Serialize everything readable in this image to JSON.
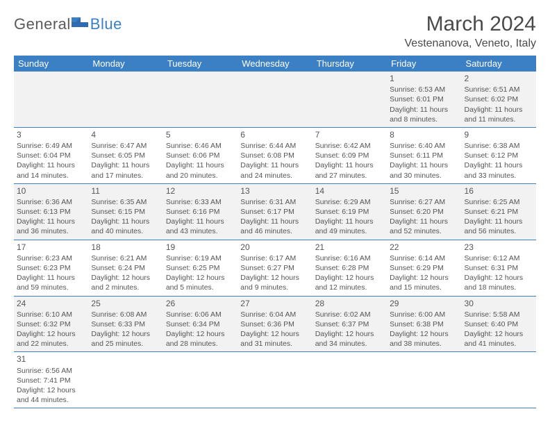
{
  "brand": {
    "part1": "General",
    "part2": "Blue"
  },
  "title": "March 2024",
  "location": "Vestenanova, Veneto, Italy",
  "weekdays": [
    "Sunday",
    "Monday",
    "Tuesday",
    "Wednesday",
    "Thursday",
    "Friday",
    "Saturday"
  ],
  "colors": {
    "header_bg": "#3b7fc4",
    "header_text": "#ffffff",
    "row_alt_bg": "#f2f2f2",
    "border": "#3b7fc4",
    "text": "#555555",
    "logo_blue": "#3b7fc4"
  },
  "weeks": [
    [
      {
        "day": "",
        "sunrise": "",
        "sunset": "",
        "daylight1": "",
        "daylight2": ""
      },
      {
        "day": "",
        "sunrise": "",
        "sunset": "",
        "daylight1": "",
        "daylight2": ""
      },
      {
        "day": "",
        "sunrise": "",
        "sunset": "",
        "daylight1": "",
        "daylight2": ""
      },
      {
        "day": "",
        "sunrise": "",
        "sunset": "",
        "daylight1": "",
        "daylight2": ""
      },
      {
        "day": "",
        "sunrise": "",
        "sunset": "",
        "daylight1": "",
        "daylight2": ""
      },
      {
        "day": "1",
        "sunrise": "Sunrise: 6:53 AM",
        "sunset": "Sunset: 6:01 PM",
        "daylight1": "Daylight: 11 hours",
        "daylight2": "and 8 minutes."
      },
      {
        "day": "2",
        "sunrise": "Sunrise: 6:51 AM",
        "sunset": "Sunset: 6:02 PM",
        "daylight1": "Daylight: 11 hours",
        "daylight2": "and 11 minutes."
      }
    ],
    [
      {
        "day": "3",
        "sunrise": "Sunrise: 6:49 AM",
        "sunset": "Sunset: 6:04 PM",
        "daylight1": "Daylight: 11 hours",
        "daylight2": "and 14 minutes."
      },
      {
        "day": "4",
        "sunrise": "Sunrise: 6:47 AM",
        "sunset": "Sunset: 6:05 PM",
        "daylight1": "Daylight: 11 hours",
        "daylight2": "and 17 minutes."
      },
      {
        "day": "5",
        "sunrise": "Sunrise: 6:46 AM",
        "sunset": "Sunset: 6:06 PM",
        "daylight1": "Daylight: 11 hours",
        "daylight2": "and 20 minutes."
      },
      {
        "day": "6",
        "sunrise": "Sunrise: 6:44 AM",
        "sunset": "Sunset: 6:08 PM",
        "daylight1": "Daylight: 11 hours",
        "daylight2": "and 24 minutes."
      },
      {
        "day": "7",
        "sunrise": "Sunrise: 6:42 AM",
        "sunset": "Sunset: 6:09 PM",
        "daylight1": "Daylight: 11 hours",
        "daylight2": "and 27 minutes."
      },
      {
        "day": "8",
        "sunrise": "Sunrise: 6:40 AM",
        "sunset": "Sunset: 6:11 PM",
        "daylight1": "Daylight: 11 hours",
        "daylight2": "and 30 minutes."
      },
      {
        "day": "9",
        "sunrise": "Sunrise: 6:38 AM",
        "sunset": "Sunset: 6:12 PM",
        "daylight1": "Daylight: 11 hours",
        "daylight2": "and 33 minutes."
      }
    ],
    [
      {
        "day": "10",
        "sunrise": "Sunrise: 6:36 AM",
        "sunset": "Sunset: 6:13 PM",
        "daylight1": "Daylight: 11 hours",
        "daylight2": "and 36 minutes."
      },
      {
        "day": "11",
        "sunrise": "Sunrise: 6:35 AM",
        "sunset": "Sunset: 6:15 PM",
        "daylight1": "Daylight: 11 hours",
        "daylight2": "and 40 minutes."
      },
      {
        "day": "12",
        "sunrise": "Sunrise: 6:33 AM",
        "sunset": "Sunset: 6:16 PM",
        "daylight1": "Daylight: 11 hours",
        "daylight2": "and 43 minutes."
      },
      {
        "day": "13",
        "sunrise": "Sunrise: 6:31 AM",
        "sunset": "Sunset: 6:17 PM",
        "daylight1": "Daylight: 11 hours",
        "daylight2": "and 46 minutes."
      },
      {
        "day": "14",
        "sunrise": "Sunrise: 6:29 AM",
        "sunset": "Sunset: 6:19 PM",
        "daylight1": "Daylight: 11 hours",
        "daylight2": "and 49 minutes."
      },
      {
        "day": "15",
        "sunrise": "Sunrise: 6:27 AM",
        "sunset": "Sunset: 6:20 PM",
        "daylight1": "Daylight: 11 hours",
        "daylight2": "and 52 minutes."
      },
      {
        "day": "16",
        "sunrise": "Sunrise: 6:25 AM",
        "sunset": "Sunset: 6:21 PM",
        "daylight1": "Daylight: 11 hours",
        "daylight2": "and 56 minutes."
      }
    ],
    [
      {
        "day": "17",
        "sunrise": "Sunrise: 6:23 AM",
        "sunset": "Sunset: 6:23 PM",
        "daylight1": "Daylight: 11 hours",
        "daylight2": "and 59 minutes."
      },
      {
        "day": "18",
        "sunrise": "Sunrise: 6:21 AM",
        "sunset": "Sunset: 6:24 PM",
        "daylight1": "Daylight: 12 hours",
        "daylight2": "and 2 minutes."
      },
      {
        "day": "19",
        "sunrise": "Sunrise: 6:19 AM",
        "sunset": "Sunset: 6:25 PM",
        "daylight1": "Daylight: 12 hours",
        "daylight2": "and 5 minutes."
      },
      {
        "day": "20",
        "sunrise": "Sunrise: 6:17 AM",
        "sunset": "Sunset: 6:27 PM",
        "daylight1": "Daylight: 12 hours",
        "daylight2": "and 9 minutes."
      },
      {
        "day": "21",
        "sunrise": "Sunrise: 6:16 AM",
        "sunset": "Sunset: 6:28 PM",
        "daylight1": "Daylight: 12 hours",
        "daylight2": "and 12 minutes."
      },
      {
        "day": "22",
        "sunrise": "Sunrise: 6:14 AM",
        "sunset": "Sunset: 6:29 PM",
        "daylight1": "Daylight: 12 hours",
        "daylight2": "and 15 minutes."
      },
      {
        "day": "23",
        "sunrise": "Sunrise: 6:12 AM",
        "sunset": "Sunset: 6:31 PM",
        "daylight1": "Daylight: 12 hours",
        "daylight2": "and 18 minutes."
      }
    ],
    [
      {
        "day": "24",
        "sunrise": "Sunrise: 6:10 AM",
        "sunset": "Sunset: 6:32 PM",
        "daylight1": "Daylight: 12 hours",
        "daylight2": "and 22 minutes."
      },
      {
        "day": "25",
        "sunrise": "Sunrise: 6:08 AM",
        "sunset": "Sunset: 6:33 PM",
        "daylight1": "Daylight: 12 hours",
        "daylight2": "and 25 minutes."
      },
      {
        "day": "26",
        "sunrise": "Sunrise: 6:06 AM",
        "sunset": "Sunset: 6:34 PM",
        "daylight1": "Daylight: 12 hours",
        "daylight2": "and 28 minutes."
      },
      {
        "day": "27",
        "sunrise": "Sunrise: 6:04 AM",
        "sunset": "Sunset: 6:36 PM",
        "daylight1": "Daylight: 12 hours",
        "daylight2": "and 31 minutes."
      },
      {
        "day": "28",
        "sunrise": "Sunrise: 6:02 AM",
        "sunset": "Sunset: 6:37 PM",
        "daylight1": "Daylight: 12 hours",
        "daylight2": "and 34 minutes."
      },
      {
        "day": "29",
        "sunrise": "Sunrise: 6:00 AM",
        "sunset": "Sunset: 6:38 PM",
        "daylight1": "Daylight: 12 hours",
        "daylight2": "and 38 minutes."
      },
      {
        "day": "30",
        "sunrise": "Sunrise: 5:58 AM",
        "sunset": "Sunset: 6:40 PM",
        "daylight1": "Daylight: 12 hours",
        "daylight2": "and 41 minutes."
      }
    ],
    [
      {
        "day": "31",
        "sunrise": "Sunrise: 6:56 AM",
        "sunset": "Sunset: 7:41 PM",
        "daylight1": "Daylight: 12 hours",
        "daylight2": "and 44 minutes."
      },
      {
        "day": "",
        "sunrise": "",
        "sunset": "",
        "daylight1": "",
        "daylight2": ""
      },
      {
        "day": "",
        "sunrise": "",
        "sunset": "",
        "daylight1": "",
        "daylight2": ""
      },
      {
        "day": "",
        "sunrise": "",
        "sunset": "",
        "daylight1": "",
        "daylight2": ""
      },
      {
        "day": "",
        "sunrise": "",
        "sunset": "",
        "daylight1": "",
        "daylight2": ""
      },
      {
        "day": "",
        "sunrise": "",
        "sunset": "",
        "daylight1": "",
        "daylight2": ""
      },
      {
        "day": "",
        "sunrise": "",
        "sunset": "",
        "daylight1": "",
        "daylight2": ""
      }
    ]
  ]
}
